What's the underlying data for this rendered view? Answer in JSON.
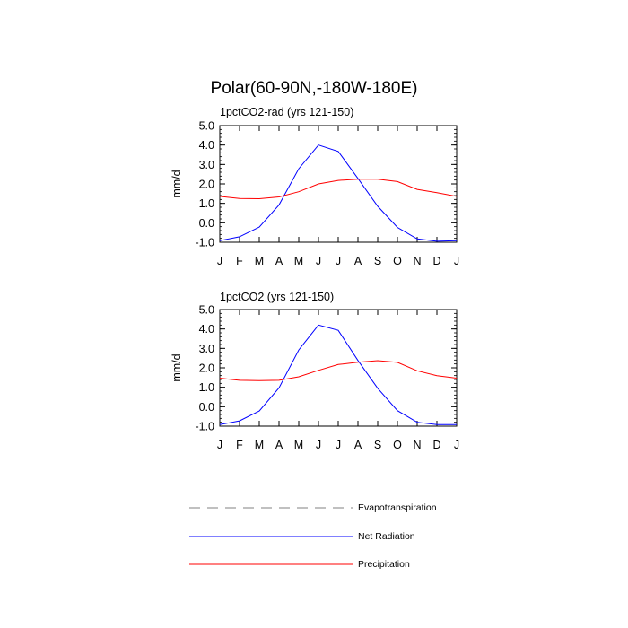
{
  "title": "Polar(60-90N,-180W-180E)",
  "chart_data": [
    {
      "type": "line",
      "subtitle": "1pctCO2-rad (yrs 121-150)",
      "ylabel": "mm/d",
      "ylim": [
        -1.0,
        5.0
      ],
      "yticks": [
        "5.0",
        "4.0",
        "3.0",
        "2.0",
        "1.0",
        "0.0",
        "-1.0"
      ],
      "categories": [
        "J",
        "F",
        "M",
        "A",
        "M",
        "J",
        "J",
        "A",
        "S",
        "O",
        "N",
        "D",
        "J"
      ],
      "series": [
        {
          "name": "Net Radiation",
          "color": "#0000ff",
          "values": [
            -0.92,
            -0.72,
            -0.22,
            0.92,
            2.78,
            4.0,
            3.67,
            2.28,
            0.85,
            -0.24,
            -0.83,
            -0.95,
            -0.92
          ]
        },
        {
          "name": "Precipitation",
          "color": "#ff0000",
          "values": [
            1.36,
            1.25,
            1.24,
            1.33,
            1.6,
            2.0,
            2.18,
            2.24,
            2.24,
            2.12,
            1.72,
            1.55,
            1.36
          ]
        }
      ]
    },
    {
      "type": "line",
      "subtitle": "1pctCO2 (yrs 121-150)",
      "ylabel": "mm/d",
      "ylim": [
        -1.0,
        5.0
      ],
      "yticks": [
        "5.0",
        "4.0",
        "3.0",
        "2.0",
        "1.0",
        "0.0",
        "-1.0"
      ],
      "categories": [
        "J",
        "F",
        "M",
        "A",
        "M",
        "J",
        "J",
        "A",
        "S",
        "O",
        "N",
        "D",
        "J"
      ],
      "series": [
        {
          "name": "Net Radiation",
          "color": "#0000ff",
          "values": [
            -0.92,
            -0.73,
            -0.22,
            0.97,
            2.92,
            4.2,
            3.93,
            2.38,
            0.95,
            -0.2,
            -0.8,
            -0.92,
            -0.92
          ]
        },
        {
          "name": "Precipitation",
          "color": "#ff0000",
          "values": [
            1.47,
            1.36,
            1.34,
            1.36,
            1.54,
            1.87,
            2.17,
            2.29,
            2.37,
            2.28,
            1.85,
            1.6,
            1.47
          ]
        }
      ]
    }
  ],
  "legend": [
    {
      "label": "Evapotranspiration",
      "color": "#808080",
      "style": "dashed"
    },
    {
      "label": "Net Radiation",
      "color": "#0000ff",
      "style": "solid"
    },
    {
      "label": "Precipitation",
      "color": "#ff0000",
      "style": "solid"
    }
  ]
}
